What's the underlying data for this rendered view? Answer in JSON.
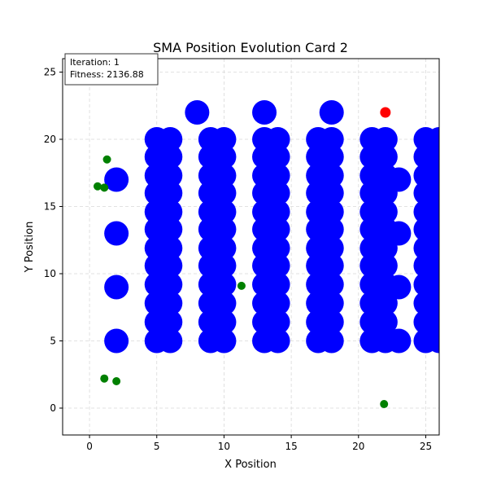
{
  "chart_data": {
    "type": "scatter",
    "title": "SMA Position Evolution Card 2",
    "xlabel": "X Position",
    "ylabel": "Y Position",
    "xlim": [
      -2,
      26
    ],
    "ylim": [
      -2,
      26
    ],
    "xticks": [
      0,
      5,
      10,
      15,
      20,
      25
    ],
    "yticks": [
      0,
      5,
      10,
      15,
      20,
      25
    ],
    "grid": true,
    "info_box": {
      "iteration_label": "Iteration: 1",
      "fitness_label": "Fitness: 2136.88"
    },
    "colors": {
      "obstacle": "#0000ff",
      "agent": "#008000",
      "best": "#ff0000",
      "grid": "#d9d9d9"
    },
    "series": [
      {
        "role": "obstacles",
        "marker_size": "large",
        "points": [
          [
            8,
            22
          ],
          [
            13,
            22
          ],
          [
            18,
            22
          ],
          [
            2,
            17
          ],
          [
            2,
            13
          ],
          [
            2,
            9
          ],
          [
            2,
            5
          ],
          [
            23,
            17
          ],
          [
            23,
            13
          ],
          [
            23,
            9
          ],
          [
            23,
            5
          ],
          [
            5,
            20
          ],
          [
            6,
            20
          ],
          [
            5,
            18.7
          ],
          [
            6,
            18.7
          ],
          [
            5,
            17.3
          ],
          [
            6,
            17.3
          ],
          [
            5,
            16
          ],
          [
            6,
            16
          ],
          [
            5,
            14.6
          ],
          [
            6,
            14.6
          ],
          [
            5,
            13.3
          ],
          [
            6,
            13.3
          ],
          [
            5,
            11.9
          ],
          [
            6,
            11.9
          ],
          [
            5,
            10.6
          ],
          [
            6,
            10.6
          ],
          [
            5,
            9.2
          ],
          [
            6,
            9.2
          ],
          [
            5,
            7.8
          ],
          [
            6,
            7.8
          ],
          [
            5,
            6.4
          ],
          [
            6,
            6.4
          ],
          [
            5,
            5
          ],
          [
            6,
            5
          ],
          [
            9,
            20
          ],
          [
            10,
            20
          ],
          [
            9,
            18.7
          ],
          [
            10,
            18.7
          ],
          [
            9,
            17.3
          ],
          [
            10,
            17.3
          ],
          [
            9,
            16
          ],
          [
            10,
            16
          ],
          [
            9,
            14.6
          ],
          [
            10,
            14.6
          ],
          [
            9,
            13.3
          ],
          [
            10,
            13.3
          ],
          [
            9,
            11.9
          ],
          [
            10,
            11.9
          ],
          [
            9,
            10.6
          ],
          [
            10,
            10.6
          ],
          [
            9,
            9.2
          ],
          [
            10,
            9.2
          ],
          [
            9,
            7.8
          ],
          [
            10,
            7.8
          ],
          [
            9,
            6.4
          ],
          [
            10,
            6.4
          ],
          [
            9,
            5
          ],
          [
            10,
            5
          ],
          [
            13,
            20
          ],
          [
            14,
            20
          ],
          [
            13,
            18.7
          ],
          [
            14,
            18.7
          ],
          [
            13,
            17.3
          ],
          [
            14,
            17.3
          ],
          [
            13,
            16
          ],
          [
            14,
            16
          ],
          [
            13,
            14.6
          ],
          [
            14,
            14.6
          ],
          [
            13,
            13.3
          ],
          [
            14,
            13.3
          ],
          [
            13,
            11.9
          ],
          [
            14,
            11.9
          ],
          [
            13,
            10.6
          ],
          [
            14,
            10.6
          ],
          [
            13,
            9.2
          ],
          [
            14,
            9.2
          ],
          [
            13,
            7.8
          ],
          [
            14,
            7.8
          ],
          [
            13,
            6.4
          ],
          [
            14,
            6.4
          ],
          [
            13,
            5
          ],
          [
            14,
            5
          ],
          [
            17,
            20
          ],
          [
            18,
            20
          ],
          [
            17,
            18.7
          ],
          [
            18,
            18.7
          ],
          [
            17,
            17.3
          ],
          [
            18,
            17.3
          ],
          [
            17,
            16
          ],
          [
            18,
            16
          ],
          [
            17,
            14.6
          ],
          [
            18,
            14.6
          ],
          [
            17,
            13.3
          ],
          [
            18,
            13.3
          ],
          [
            17,
            11.9
          ],
          [
            18,
            11.9
          ],
          [
            17,
            10.6
          ],
          [
            18,
            10.6
          ],
          [
            17,
            9.2
          ],
          [
            18,
            9.2
          ],
          [
            17,
            7.8
          ],
          [
            18,
            7.8
          ],
          [
            17,
            6.4
          ],
          [
            18,
            6.4
          ],
          [
            17,
            5
          ],
          [
            18,
            5
          ],
          [
            21,
            20
          ],
          [
            22,
            20
          ],
          [
            21,
            18.7
          ],
          [
            22,
            18.7
          ],
          [
            21,
            17.3
          ],
          [
            22,
            17.3
          ],
          [
            21,
            16
          ],
          [
            22,
            16
          ],
          [
            21,
            14.6
          ],
          [
            22,
            14.6
          ],
          [
            21,
            13.3
          ],
          [
            22,
            13.3
          ],
          [
            21,
            11.9
          ],
          [
            22,
            11.9
          ],
          [
            21,
            10.6
          ],
          [
            22,
            10.6
          ],
          [
            21,
            9.2
          ],
          [
            22,
            9.2
          ],
          [
            21,
            7.8
          ],
          [
            22,
            7.8
          ],
          [
            21,
            6.4
          ],
          [
            22,
            6.4
          ],
          [
            21,
            5
          ],
          [
            22,
            5
          ],
          [
            25,
            20
          ],
          [
            26,
            20
          ],
          [
            25,
            18.7
          ],
          [
            26,
            18.7
          ],
          [
            25,
            17.3
          ],
          [
            26,
            17.3
          ],
          [
            25,
            16
          ],
          [
            26,
            16
          ],
          [
            25,
            14.6
          ],
          [
            26,
            14.6
          ],
          [
            25,
            13.3
          ],
          [
            26,
            13.3
          ],
          [
            25,
            11.9
          ],
          [
            26,
            11.9
          ],
          [
            25,
            10.6
          ],
          [
            26,
            10.6
          ],
          [
            25,
            9.2
          ],
          [
            26,
            9.2
          ],
          [
            25,
            7.8
          ],
          [
            26,
            7.8
          ],
          [
            25,
            6.4
          ],
          [
            26,
            6.4
          ],
          [
            25,
            5
          ],
          [
            26,
            5
          ]
        ]
      },
      {
        "role": "agents",
        "marker_size": "small",
        "points": [
          [
            1.3,
            18.5
          ],
          [
            0.6,
            16.5
          ],
          [
            1.1,
            16.4
          ],
          [
            11.3,
            9.1
          ],
          [
            1.1,
            2.2
          ],
          [
            2.0,
            2.0
          ],
          [
            21.9,
            0.3
          ]
        ]
      },
      {
        "role": "best",
        "marker_size": "medium",
        "points": [
          [
            22,
            22
          ]
        ]
      }
    ]
  }
}
